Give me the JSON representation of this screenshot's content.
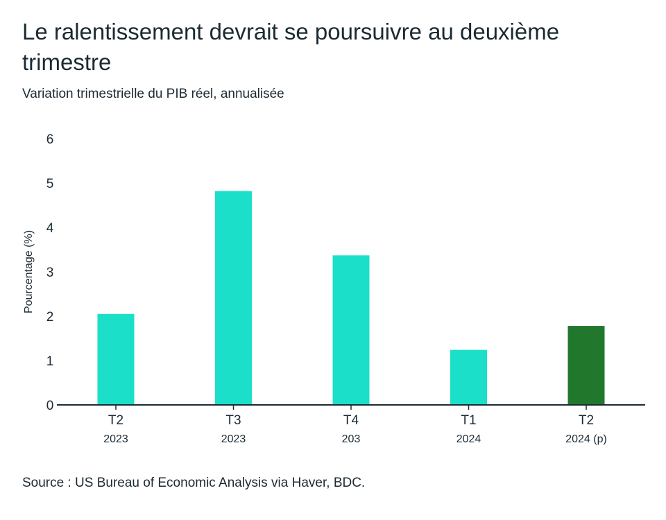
{
  "title": "Le ralentissement devrait se poursuivre au deuxième trimestre",
  "subtitle": "Variation trimestrielle du PIB réel, annualisée",
  "source": "Source : US Bureau of Economic Analysis via Haver, BDC.",
  "colors": {
    "bar": "#1bdfc9",
    "bar_projection": "#21782c",
    "axis": "#1b2a33",
    "text": "#1b2a33"
  },
  "chart_data": {
    "type": "bar",
    "title": "Le ralentissement devrait se poursuivre au deuxième trimestre",
    "subtitle": "Variation trimestrielle du PIB réel, annualisée",
    "ylabel": "Pourcentage (%)",
    "xlabel": "",
    "ylim": [
      0,
      6
    ],
    "yticks": [
      "0",
      "1",
      "2",
      "3",
      "4",
      "5",
      "6"
    ],
    "grid": false,
    "categories": [
      {
        "top": "T2",
        "bottom": "2023"
      },
      {
        "top": "T3",
        "bottom": "2023"
      },
      {
        "top": "T4",
        "bottom": "203"
      },
      {
        "top": "T1",
        "bottom": "2024"
      },
      {
        "top": "T2",
        "bottom": "2024 (p)"
      }
    ],
    "values": [
      2.05,
      4.82,
      3.37,
      1.24,
      1.78
    ],
    "projection": [
      false,
      false,
      false,
      false,
      true
    ]
  }
}
